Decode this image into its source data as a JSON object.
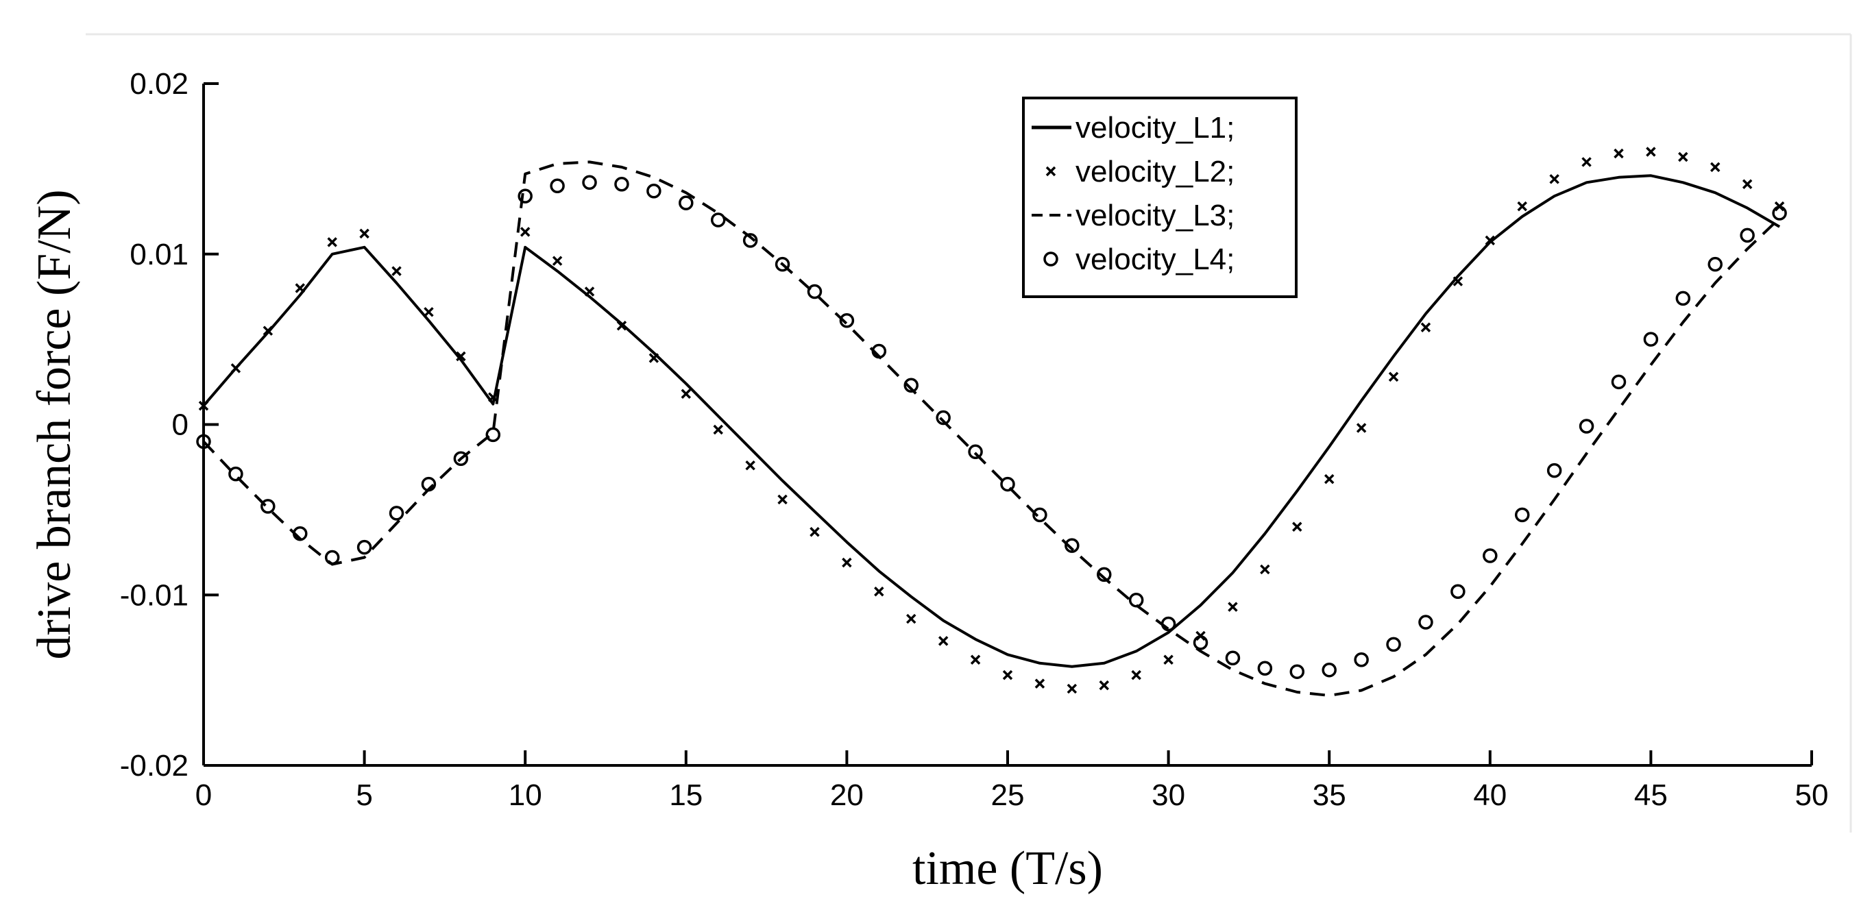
{
  "chart_data": {
    "type": "line",
    "title": "",
    "xlabel": "time (T/s)",
    "ylabel": "drive branch force (F/N)",
    "xlim": [
      0,
      50
    ],
    "ylim": [
      -0.02,
      0.02
    ],
    "xticks": [
      0,
      5,
      10,
      15,
      20,
      25,
      30,
      35,
      40,
      45,
      50
    ],
    "xtick_labels": [
      "0",
      "5",
      "10",
      "15",
      "20",
      "25",
      "30",
      "35",
      "40",
      "45",
      "50"
    ],
    "yticks": [
      -0.02,
      -0.01,
      0,
      0.01,
      0.02
    ],
    "ytick_labels": [
      "-0.02",
      "-0.01",
      "0",
      "0.01",
      "0.02"
    ],
    "grid": false,
    "legend_position": "top-center",
    "series": [
      {
        "name": "velocity_L1;",
        "style": "solid",
        "x": [
          0,
          1,
          2,
          3,
          4,
          5,
          6,
          7,
          8,
          9,
          10,
          11,
          12,
          13,
          14,
          15,
          16,
          17,
          18,
          19,
          20,
          21,
          22,
          23,
          24,
          25,
          26,
          27,
          28,
          29,
          30,
          31,
          32,
          33,
          34,
          35,
          36,
          37,
          38,
          39,
          40,
          41,
          42,
          43,
          44,
          45,
          46,
          47,
          48,
          49
        ],
        "y": [
          0.0011,
          0.0033,
          0.0054,
          0.0076,
          0.01,
          0.0104,
          0.0083,
          0.0061,
          0.0038,
          0.0012,
          0.0104,
          0.009,
          0.0075,
          0.0059,
          0.0042,
          0.0024,
          0.0005,
          -0.0014,
          -0.0033,
          -0.0051,
          -0.0069,
          -0.0086,
          -0.0101,
          -0.0115,
          -0.0126,
          -0.0135,
          -0.014,
          -0.0142,
          -0.014,
          -0.0133,
          -0.0122,
          -0.0106,
          -0.0087,
          -0.0064,
          -0.0039,
          -0.0013,
          0.0014,
          0.004,
          0.0065,
          0.0087,
          0.0107,
          0.0122,
          0.0134,
          0.0142,
          0.0145,
          0.0146,
          0.0142,
          0.0136,
          0.0127,
          0.0116
        ]
      },
      {
        "name": "velocity_L2;",
        "style": "x-marker",
        "x": [
          0,
          1,
          2,
          3,
          4,
          5,
          6,
          7,
          8,
          9,
          10,
          11,
          12,
          13,
          14,
          15,
          16,
          17,
          18,
          19,
          20,
          21,
          22,
          23,
          24,
          25,
          26,
          27,
          28,
          29,
          30,
          31,
          32,
          33,
          34,
          35,
          36,
          37,
          38,
          39,
          40,
          41,
          42,
          43,
          44,
          45,
          46,
          47,
          48,
          49
        ],
        "y": [
          0.0011,
          0.0033,
          0.0055,
          0.008,
          0.0107,
          0.0112,
          0.009,
          0.0066,
          0.004,
          0.0016,
          0.0113,
          0.0096,
          0.0078,
          0.0058,
          0.0039,
          0.0018,
          -0.0003,
          -0.0024,
          -0.0044,
          -0.0063,
          -0.0081,
          -0.0098,
          -0.0114,
          -0.0127,
          -0.0138,
          -0.0147,
          -0.0152,
          -0.0155,
          -0.0153,
          -0.0147,
          -0.0138,
          -0.0124,
          -0.0107,
          -0.0085,
          -0.006,
          -0.0032,
          -0.0002,
          0.0028,
          0.0057,
          0.0084,
          0.0108,
          0.0128,
          0.0144,
          0.0154,
          0.0159,
          0.016,
          0.0157,
          0.0151,
          0.0141,
          0.0128
        ]
      },
      {
        "name": "velocity_L3;",
        "style": "dashed",
        "x": [
          0,
          1,
          2,
          3,
          4,
          5,
          6,
          7,
          8,
          9,
          10,
          11,
          12,
          13,
          14,
          15,
          16,
          17,
          18,
          19,
          20,
          21,
          22,
          23,
          24,
          25,
          26,
          27,
          28,
          29,
          30,
          31,
          32,
          33,
          34,
          35,
          36,
          37,
          38,
          39,
          40,
          41,
          42,
          43,
          44,
          45,
          46,
          47,
          48,
          49
        ],
        "y": [
          -0.001,
          -0.003,
          -0.0049,
          -0.0067,
          -0.0082,
          -0.0078,
          -0.0058,
          -0.0038,
          -0.002,
          -0.0005,
          0.0147,
          0.0153,
          0.0154,
          0.0151,
          0.0145,
          0.0136,
          0.0124,
          0.011,
          0.0094,
          0.0077,
          0.0059,
          0.004,
          0.0021,
          0.0002,
          -0.0017,
          -0.0036,
          -0.0055,
          -0.0073,
          -0.009,
          -0.0106,
          -0.012,
          -0.0133,
          -0.0144,
          -0.0152,
          -0.0157,
          -0.0159,
          -0.0156,
          -0.0148,
          -0.0135,
          -0.0117,
          -0.0095,
          -0.007,
          -0.0044,
          -0.0017,
          0.0009,
          0.0035,
          0.006,
          0.0083,
          0.0103,
          0.0121
        ]
      },
      {
        "name": "velocity_L4;",
        "style": "circle-marker",
        "x": [
          0,
          1,
          2,
          3,
          4,
          5,
          6,
          7,
          8,
          9,
          10,
          11,
          12,
          13,
          14,
          15,
          16,
          17,
          18,
          19,
          20,
          21,
          22,
          23,
          24,
          25,
          26,
          27,
          28,
          29,
          30,
          31,
          32,
          33,
          34,
          35,
          36,
          37,
          38,
          39,
          40,
          41,
          42,
          43,
          44,
          45,
          46,
          47,
          48,
          49
        ],
        "y": [
          -0.001,
          -0.0029,
          -0.0048,
          -0.0064,
          -0.0078,
          -0.0072,
          -0.0052,
          -0.0035,
          -0.002,
          -0.0006,
          0.0134,
          0.014,
          0.0142,
          0.0141,
          0.0137,
          0.013,
          0.012,
          0.0108,
          0.0094,
          0.0078,
          0.0061,
          0.0043,
          0.0023,
          0.0004,
          -0.0016,
          -0.0035,
          -0.0053,
          -0.0071,
          -0.0088,
          -0.0103,
          -0.0117,
          -0.0128,
          -0.0137,
          -0.0143,
          -0.0145,
          -0.0144,
          -0.0138,
          -0.0129,
          -0.0116,
          -0.0098,
          -0.0077,
          -0.0053,
          -0.0027,
          -0.0001,
          0.0025,
          0.005,
          0.0074,
          0.0094,
          0.0111,
          0.0124
        ]
      }
    ]
  }
}
